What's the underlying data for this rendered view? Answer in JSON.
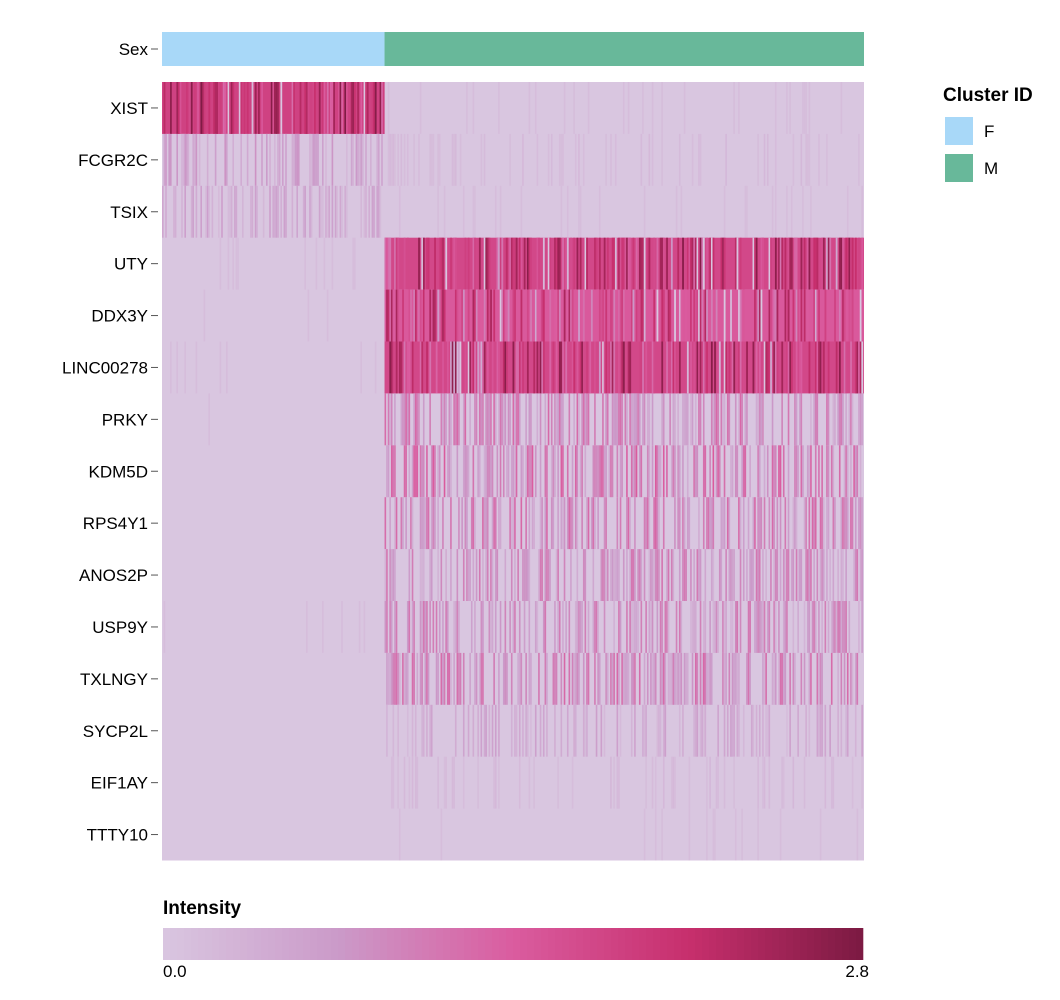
{
  "chart_data": {
    "type": "heatmap",
    "title": "",
    "annotation_row": {
      "label": "Sex",
      "groups": [
        {
          "name": "F",
          "fraction": 0.317,
          "color": "#a8d8f8"
        },
        {
          "name": "M",
          "fraction": 0.683,
          "color": "#68b89a"
        }
      ]
    },
    "genes": [
      "XIST",
      "FCGR2C",
      "TSIX",
      "UTY",
      "DDX3Y",
      "LINC00278",
      "PRKY",
      "KDM5D",
      "RPS4Y1",
      "ANOS2P",
      "USP9Y",
      "TXLNGY",
      "SYCP2L",
      "EIF1AY",
      "TTTY10"
    ],
    "mean_expression": {
      "F": [
        2.0,
        0.5,
        0.4,
        0.05,
        0.03,
        0.03,
        0.01,
        0.01,
        0.0,
        0.0,
        0.02,
        0.02,
        0.01,
        0.0,
        0.0
      ],
      "M": [
        0.05,
        0.15,
        0.1,
        1.9,
        1.6,
        1.9,
        0.8,
        0.9,
        0.8,
        0.7,
        0.7,
        0.8,
        0.4,
        0.15,
        0.02
      ]
    },
    "density": {
      "F": [
        0.95,
        0.5,
        0.45,
        0.05,
        0.03,
        0.04,
        0.01,
        0.01,
        0.0,
        0.0,
        0.02,
        0.02,
        0.01,
        0.0,
        0.0
      ],
      "M": [
        0.08,
        0.2,
        0.12,
        0.95,
        0.92,
        0.95,
        0.6,
        0.6,
        0.55,
        0.55,
        0.55,
        0.6,
        0.35,
        0.25,
        0.05
      ]
    },
    "legend": {
      "title": "Cluster ID",
      "entries": [
        {
          "label": "F",
          "color": "#a8d8f8"
        },
        {
          "label": "M",
          "color": "#68b89a"
        }
      ],
      "placement": "top-right"
    },
    "colorbar": {
      "title": "Intensity",
      "min": 0.0,
      "max": 2.8,
      "min_label": "0.0",
      "max_label": "2.8",
      "colors": [
        "#d9c6e0",
        "#cb9ac9",
        "#da5c9f",
        "#c72f6d",
        "#7c1a42"
      ]
    }
  }
}
